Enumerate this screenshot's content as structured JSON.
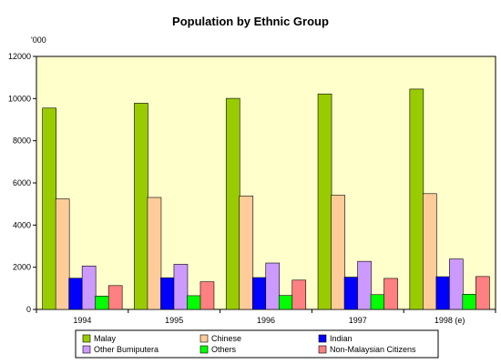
{
  "chart_data": {
    "type": "bar",
    "title": "Population by Ethnic Group",
    "y_unit_label": "'000",
    "xlabel": "",
    "ylabel": "",
    "ylim": [
      0,
      12000
    ],
    "yticks": [
      0,
      2000,
      4000,
      6000,
      8000,
      10000,
      12000
    ],
    "grid": false,
    "legend_position": "bottom",
    "categories": [
      "1994",
      "1995",
      "1996",
      "1997",
      "1998 (e)"
    ],
    "series": [
      {
        "name": "Malay",
        "color": "#99cc00",
        "values": [
          9550,
          9780,
          10010,
          10220,
          10450
        ]
      },
      {
        "name": "Chinese",
        "color": "#ffcc99",
        "values": [
          5240,
          5310,
          5380,
          5420,
          5490
        ]
      },
      {
        "name": "Indian",
        "color": "#0000ff",
        "values": [
          1480,
          1500,
          1510,
          1530,
          1550
        ]
      },
      {
        "name": "Other Bumiputera",
        "color": "#cc99ff",
        "values": [
          2060,
          2140,
          2200,
          2280,
          2390
        ]
      },
      {
        "name": "Others",
        "color": "#00ff00",
        "values": [
          630,
          650,
          660,
          700,
          720
        ]
      },
      {
        "name": "Non-Malaysian Citizens",
        "color": "#ff8080",
        "values": [
          1130,
          1310,
          1390,
          1470,
          1560
        ]
      }
    ],
    "plot_background": "#ffffcc"
  }
}
